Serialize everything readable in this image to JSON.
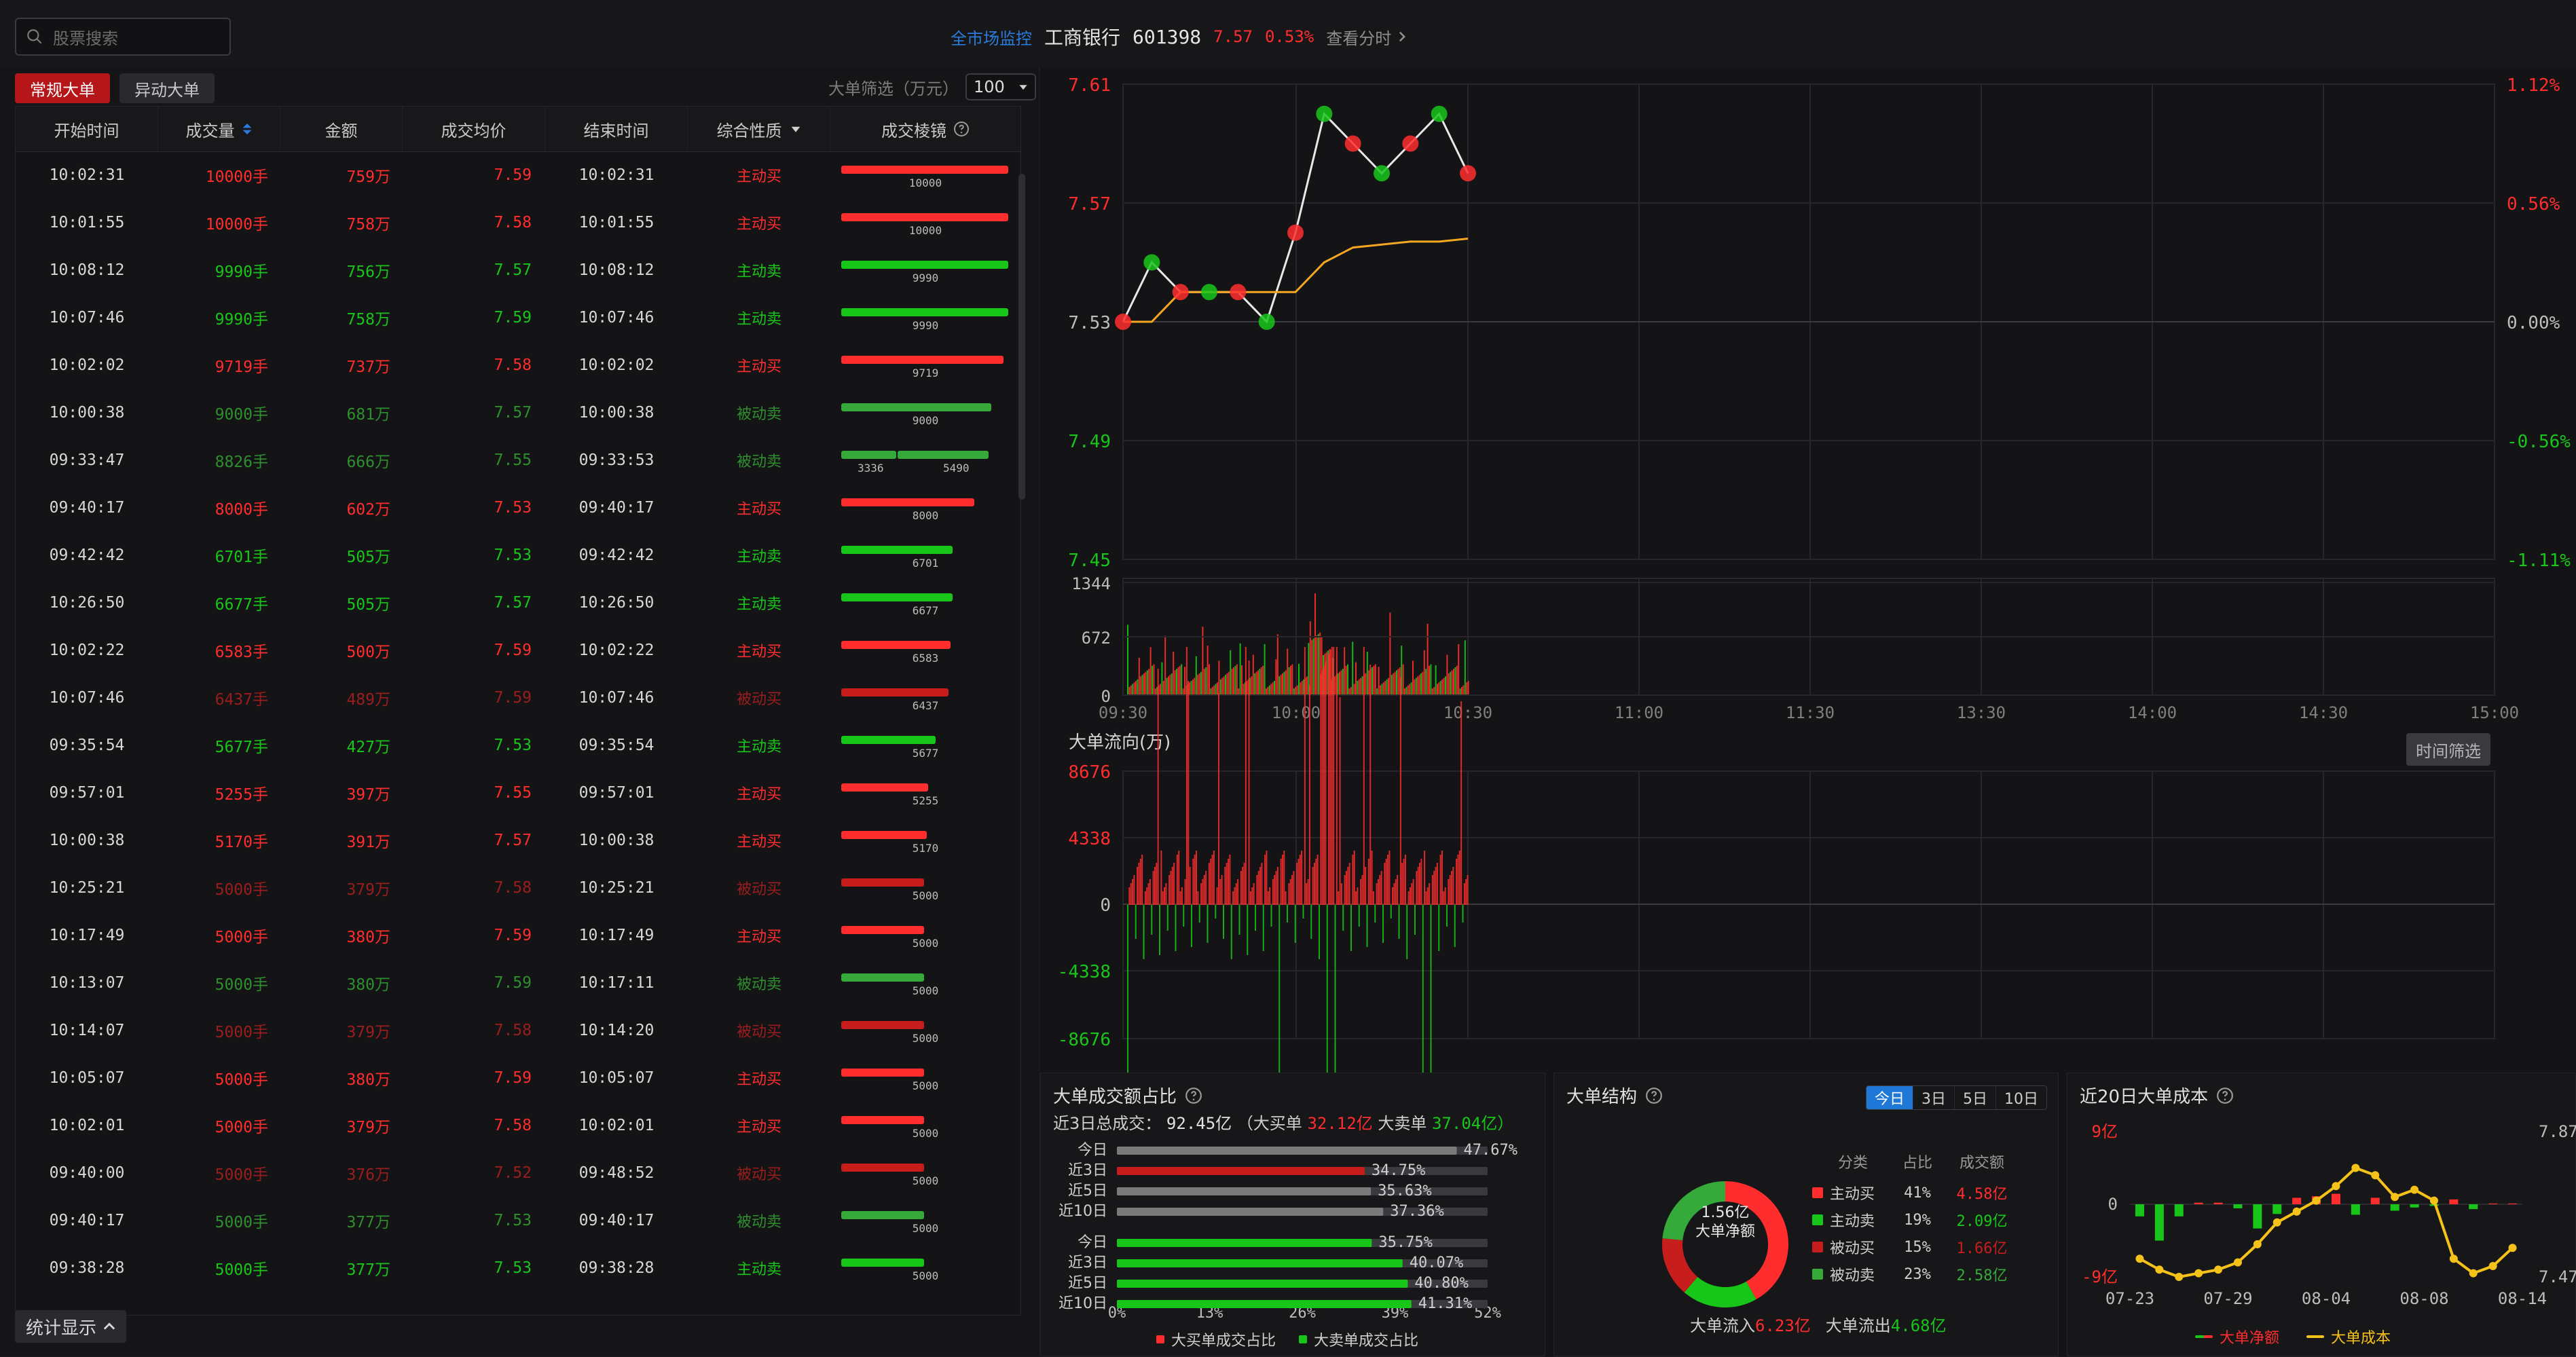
{
  "header": {
    "search_placeholder": "股票搜索",
    "market_monitor": "全市场监控",
    "stock_name": "工商银行",
    "stock_code": "601398",
    "price": "7.57",
    "pct": "0.53%",
    "view_time": "查看分时"
  },
  "left": {
    "tabs": [
      "常规大单",
      "异动大单"
    ],
    "filter_label": "大单筛选（万元）",
    "filter_value": "100",
    "columns": [
      "开始时间",
      "成交量",
      "金额",
      "成交均价",
      "结束时间",
      "综合性质",
      "成交棱镜"
    ],
    "rows": [
      {
        "start": "10:02:31",
        "vol": "10000手",
        "amt": "759万",
        "avg": "7.59",
        "end": "10:02:31",
        "nature": "主动买",
        "tone": "red",
        "mirror": [
          10000
        ],
        "mirror_labels": [
          "10000"
        ]
      },
      {
        "start": "10:01:55",
        "vol": "10000手",
        "amt": "758万",
        "avg": "7.58",
        "end": "10:01:55",
        "nature": "主动买",
        "tone": "red",
        "mirror": [
          10000
        ],
        "mirror_labels": [
          "10000"
        ]
      },
      {
        "start": "10:08:12",
        "vol": "9990手",
        "amt": "756万",
        "avg": "7.57",
        "end": "10:08:12",
        "nature": "主动卖",
        "tone": "green",
        "mirror": [
          9990
        ],
        "mirror_labels": [
          "9990"
        ]
      },
      {
        "start": "10:07:46",
        "vol": "9990手",
        "amt": "758万",
        "avg": "7.59",
        "end": "10:07:46",
        "nature": "主动卖",
        "tone": "green",
        "mirror": [
          9990
        ],
        "mirror_labels": [
          "9990"
        ]
      },
      {
        "start": "10:02:02",
        "vol": "9719手",
        "amt": "737万",
        "avg": "7.58",
        "end": "10:02:02",
        "nature": "主动买",
        "tone": "red",
        "mirror": [
          9719
        ],
        "mirror_labels": [
          "9719"
        ]
      },
      {
        "start": "10:00:38",
        "vol": "9000手",
        "amt": "681万",
        "avg": "7.57",
        "end": "10:00:38",
        "nature": "被动卖",
        "tone": "dimgreen",
        "mirror": [
          9000
        ],
        "mirror_labels": [
          "9000"
        ]
      },
      {
        "start": "09:33:47",
        "vol": "8826手",
        "amt": "666万",
        "avg": "7.55",
        "end": "09:33:53",
        "nature": "被动卖",
        "tone": "dimgreen",
        "mirror": [
          3336,
          5490
        ],
        "mirror_labels": [
          "3336",
          "5490"
        ]
      },
      {
        "start": "09:40:17",
        "vol": "8000手",
        "amt": "602万",
        "avg": "7.53",
        "end": "09:40:17",
        "nature": "主动买",
        "tone": "red",
        "mirror": [
          8000
        ],
        "mirror_labels": [
          "8000"
        ]
      },
      {
        "start": "09:42:42",
        "vol": "6701手",
        "amt": "505万",
        "avg": "7.53",
        "end": "09:42:42",
        "nature": "主动卖",
        "tone": "green",
        "mirror": [
          6701
        ],
        "mirror_labels": [
          "6701"
        ]
      },
      {
        "start": "10:26:50",
        "vol": "6677手",
        "amt": "505万",
        "avg": "7.57",
        "end": "10:26:50",
        "nature": "主动卖",
        "tone": "green",
        "mirror": [
          6677
        ],
        "mirror_labels": [
          "6677"
        ]
      },
      {
        "start": "10:02:22",
        "vol": "6583手",
        "amt": "500万",
        "avg": "7.59",
        "end": "10:02:22",
        "nature": "主动买",
        "tone": "red",
        "mirror": [
          6583
        ],
        "mirror_labels": [
          "6583"
        ]
      },
      {
        "start": "10:07:46",
        "vol": "6437手",
        "amt": "489万",
        "avg": "7.59",
        "end": "10:07:46",
        "nature": "被动买",
        "tone": "dimred",
        "mirror": [
          6437
        ],
        "mirror_labels": [
          "6437"
        ]
      },
      {
        "start": "09:35:54",
        "vol": "5677手",
        "amt": "427万",
        "avg": "7.53",
        "end": "09:35:54",
        "nature": "主动卖",
        "tone": "green",
        "mirror": [
          5677
        ],
        "mirror_labels": [
          "5677"
        ]
      },
      {
        "start": "09:57:01",
        "vol": "5255手",
        "amt": "397万",
        "avg": "7.55",
        "end": "09:57:01",
        "nature": "主动买",
        "tone": "red",
        "mirror": [
          5255
        ],
        "mirror_labels": [
          "5255"
        ]
      },
      {
        "start": "10:00:38",
        "vol": "5170手",
        "amt": "391万",
        "avg": "7.57",
        "end": "10:00:38",
        "nature": "主动买",
        "tone": "red",
        "mirror": [
          5170
        ],
        "mirror_labels": [
          "5170"
        ]
      },
      {
        "start": "10:25:21",
        "vol": "5000手",
        "amt": "379万",
        "avg": "7.58",
        "end": "10:25:21",
        "nature": "被动买",
        "tone": "dimred",
        "mirror": [
          5000
        ],
        "mirror_labels": [
          "5000"
        ]
      },
      {
        "start": "10:17:49",
        "vol": "5000手",
        "amt": "380万",
        "avg": "7.59",
        "end": "10:17:49",
        "nature": "主动买",
        "tone": "red",
        "mirror": [
          5000
        ],
        "mirror_labels": [
          "5000"
        ]
      },
      {
        "start": "10:13:07",
        "vol": "5000手",
        "amt": "380万",
        "avg": "7.59",
        "end": "10:17:11",
        "nature": "被动卖",
        "tone": "dimgreen",
        "mirror": [
          5000
        ],
        "mirror_labels": [
          "5000"
        ]
      },
      {
        "start": "10:14:07",
        "vol": "5000手",
        "amt": "379万",
        "avg": "7.58",
        "end": "10:14:20",
        "nature": "被动买",
        "tone": "dimred",
        "mirror": [
          5000
        ],
        "mirror_labels": [
          "5000"
        ]
      },
      {
        "start": "10:05:07",
        "vol": "5000手",
        "amt": "380万",
        "avg": "7.59",
        "end": "10:05:07",
        "nature": "主动买",
        "tone": "red",
        "mirror": [
          5000
        ],
        "mirror_labels": [
          "5000"
        ]
      },
      {
        "start": "10:02:01",
        "vol": "5000手",
        "amt": "379万",
        "avg": "7.58",
        "end": "10:02:01",
        "nature": "主动买",
        "tone": "red",
        "mirror": [
          5000
        ],
        "mirror_labels": [
          "5000"
        ]
      },
      {
        "start": "09:40:00",
        "vol": "5000手",
        "amt": "376万",
        "avg": "7.52",
        "end": "09:48:52",
        "nature": "被动买",
        "tone": "dimred",
        "mirror": [
          5000
        ],
        "mirror_labels": [
          "5000"
        ]
      },
      {
        "start": "09:40:17",
        "vol": "5000手",
        "amt": "377万",
        "avg": "7.53",
        "end": "09:40:17",
        "nature": "被动卖",
        "tone": "dimgreen",
        "mirror": [
          5000
        ],
        "mirror_labels": [
          "5000"
        ]
      },
      {
        "start": "09:38:28",
        "vol": "5000手",
        "amt": "377万",
        "avg": "7.53",
        "end": "09:38:28",
        "nature": "主动卖",
        "tone": "green",
        "mirror": [
          5000
        ],
        "mirror_labels": [
          "5000"
        ]
      }
    ],
    "stat_button": "统计显示"
  },
  "right": {
    "price_chart": {
      "y_left": [
        "7.61",
        "7.57",
        "7.53",
        "7.49",
        "7.45"
      ],
      "y_right": [
        "1.12%",
        "0.56%",
        "0.00%",
        "-0.56%",
        "-1.11%"
      ],
      "volume_y": [
        "1344",
        "672",
        "0"
      ],
      "x_labels": [
        "09:30",
        "10:00",
        "10:30",
        "11:00",
        "11:30",
        "13:30",
        "14:00",
        "14:30",
        "15:00"
      ]
    },
    "flow_title": "大单流向(万)",
    "flow_y": [
      "8676",
      "4338",
      "0",
      "-4338",
      "-8676"
    ],
    "time_filter": "时间筛选"
  },
  "panels": {
    "p1": {
      "title": "大单成交额占比",
      "summary_prefix": "近3日总成交：",
      "total": "92.45亿",
      "buy_label": "（大买单",
      "buy_value": "32.12亿",
      "sell_label": " 大卖单",
      "sell_value": "37.04亿）",
      "bar_labels": [
        "今日",
        "近3日",
        "近5日",
        "近10日",
        "今日",
        "近3日",
        "近5日",
        "近10日"
      ],
      "bar_values": [
        47.67,
        34.75,
        35.63,
        37.36,
        35.75,
        40.07,
        40.8,
        41.31
      ],
      "bar_texts": [
        "47.67%",
        "34.75%",
        "35.63%",
        "37.36%",
        "35.75%",
        "40.07%",
        "40.80%",
        "41.31%"
      ],
      "x_ticks": [
        "0%",
        "13%",
        "26%",
        "39%",
        "52%"
      ],
      "legend": [
        "大买单成交占比",
        "大卖单成交占比"
      ]
    },
    "p2": {
      "title": "大单结构",
      "periods": [
        "今日",
        "3日",
        "5日",
        "10日"
      ],
      "active_period": 0,
      "center_top": "1.56亿",
      "center_bottom": "大单净额",
      "table_headers": [
        "分类",
        "占比",
        "成交额"
      ],
      "items": [
        {
          "name": "主动买",
          "pct": "41%",
          "amt": "4.58亿",
          "color": "#ff2d2d",
          "tone": "red"
        },
        {
          "name": "主动卖",
          "pct": "19%",
          "amt": "2.09亿",
          "color": "#18c61a",
          "tone": "green"
        },
        {
          "name": "被动买",
          "pct": "15%",
          "amt": "1.66亿",
          "color": "#c81d1d",
          "tone": "dimred"
        },
        {
          "name": "被动卖",
          "pct": "23%",
          "amt": "2.58亿",
          "color": "#35a93a",
          "tone": "dimgreen"
        }
      ],
      "flow_in_label": "大单流入",
      "flow_in": "6.23亿",
      "flow_out_label": "大单流出",
      "flow_out": "4.68亿"
    },
    "p3": {
      "title": "近20日大单成本",
      "y_left": [
        "9亿",
        "0",
        "-9亿"
      ],
      "y_right": [
        "7.87",
        "7.47"
      ],
      "x_labels": [
        "07-23",
        "07-29",
        "08-04",
        "08-08",
        "08-14"
      ],
      "legend": [
        "大单净额",
        "大单成本"
      ],
      "net": [
        -1.5,
        -4.5,
        -1.5,
        0.2,
        0.2,
        -0.5,
        -3.0,
        -1.2,
        0.8,
        1.0,
        1.3,
        -1.3,
        0.8,
        -0.8,
        -0.4,
        -0.2,
        0.6,
        -0.6,
        0.1,
        0.1
      ],
      "cost": [
        7.52,
        7.49,
        7.47,
        7.48,
        7.49,
        7.51,
        7.56,
        7.62,
        7.65,
        7.68,
        7.72,
        7.77,
        7.75,
        7.69,
        7.71,
        7.68,
        7.52,
        7.48,
        7.5,
        7.55
      ]
    }
  },
  "chart_data": [
    {
      "type": "line",
      "title": "",
      "x": [
        "09:30",
        "09:35",
        "09:40",
        "09:45",
        "09:50",
        "09:55",
        "10:00",
        "10:05",
        "10:10",
        "10:15",
        "10:20",
        "10:25",
        "10:30"
      ],
      "series": [
        {
          "name": "",
          "values": [
            7.53,
            7.55,
            7.54,
            7.54,
            7.54,
            7.53,
            7.56,
            7.6,
            7.59,
            7.58,
            7.59,
            7.6,
            7.58
          ]
        },
        {
          "name": "",
          "values": [
            7.53,
            7.53,
            7.54,
            7.54,
            7.54,
            7.54,
            7.54,
            7.55,
            7.555,
            7.556,
            7.557,
            7.557,
            7.558
          ]
        }
      ],
      "ylim": [
        7.45,
        7.61
      ]
    },
    {
      "type": "bar",
      "title": "",
      "x": [
        "09:30",
        "10:00",
        "10:30"
      ],
      "ylim": [
        0,
        1344
      ]
    },
    {
      "type": "bar",
      "title": "大单流向(万)",
      "x": [
        "09:30",
        "10:00",
        "10:30",
        "11:00",
        "11:30",
        "13:30",
        "14:00",
        "14:30",
        "15:00"
      ],
      "ylim": [
        -8676,
        8676
      ]
    }
  ]
}
